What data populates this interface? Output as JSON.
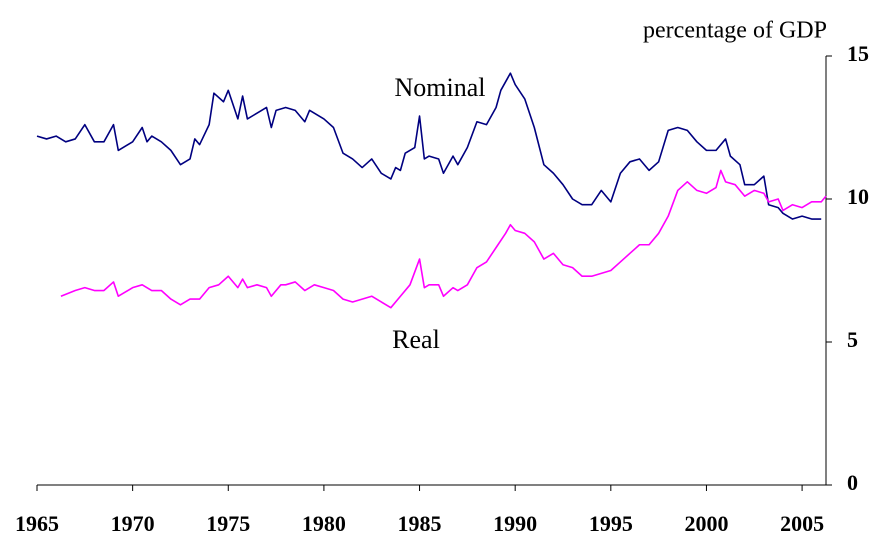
{
  "chart_data": {
    "type": "line",
    "y_label": "percentage of GDP",
    "xlim": [
      1965,
      2006.25
    ],
    "ylim": [
      0,
      15
    ],
    "xticks": [
      1965,
      1970,
      1975,
      1980,
      1985,
      1990,
      1995,
      2000,
      2005
    ],
    "yticks": [
      0,
      5,
      10,
      15
    ],
    "series": [
      {
        "name": "Nominal",
        "color": "#000080",
        "x": [
          1965,
          1965.5,
          1966,
          1966.5,
          1967,
          1967.5,
          1968,
          1968.5,
          1969,
          1969.25,
          1970,
          1970.5,
          1970.75,
          1971,
          1971.5,
          1972,
          1972.5,
          1973,
          1973.25,
          1973.5,
          1974,
          1974.25,
          1974.75,
          1975,
          1975.5,
          1975.75,
          1976,
          1976.5,
          1977,
          1977.25,
          1977.5,
          1978,
          1978.5,
          1979,
          1979.25,
          1979.75,
          1980,
          1980.5,
          1981,
          1981.5,
          1982,
          1982.5,
          1983,
          1983.5,
          1983.75,
          1984,
          1984.25,
          1984.75,
          1985,
          1985.25,
          1985.5,
          1986,
          1986.25,
          1986.75,
          1987,
          1987.5,
          1988,
          1988.5,
          1989,
          1989.25,
          1989.75,
          1990,
          1990.5,
          1991,
          1991.5,
          1992,
          1992.5,
          1993,
          1993.5,
          1994,
          1994.5,
          1995,
          1995.5,
          1996,
          1996.5,
          1997,
          1997.5,
          1998,
          1998.5,
          1999,
          1999.5,
          2000,
          2000.5,
          2001,
          2001.25,
          2001.75,
          2002,
          2002.5,
          2003,
          2003.25,
          2003.75,
          2004,
          2004.5,
          2005,
          2005.5,
          2006
        ],
        "values": [
          12.2,
          12.1,
          12.2,
          12.0,
          12.1,
          12.6,
          12.0,
          12.0,
          12.6,
          11.7,
          12.0,
          12.5,
          12.0,
          12.2,
          12.0,
          11.7,
          11.2,
          11.4,
          12.1,
          11.9,
          12.6,
          13.7,
          13.4,
          13.8,
          12.8,
          13.6,
          12.8,
          13.0,
          13.2,
          12.5,
          13.1,
          13.2,
          13.1,
          12.7,
          13.1,
          12.9,
          12.8,
          12.5,
          11.6,
          11.4,
          11.1,
          11.4,
          10.9,
          10.7,
          11.1,
          11.0,
          11.6,
          11.8,
          12.9,
          11.4,
          11.5,
          11.4,
          10.9,
          11.5,
          11.2,
          11.8,
          12.7,
          12.6,
          13.2,
          13.8,
          14.4,
          14.0,
          13.5,
          12.5,
          11.2,
          10.9,
          10.5,
          10.0,
          9.8,
          9.8,
          10.3,
          9.9,
          10.9,
          11.3,
          11.4,
          11.0,
          11.3,
          12.4,
          12.5,
          12.4,
          12.0,
          11.7,
          11.7,
          12.1,
          11.5,
          11.2,
          10.5,
          10.5,
          10.8,
          9.8,
          9.7,
          9.5,
          9.3,
          9.4,
          9.3,
          9.3
        ]
      },
      {
        "name": "Real",
        "color": "#ff00ff",
        "x": [
          1966.25,
          1967,
          1967.5,
          1968,
          1968.5,
          1969,
          1969.25,
          1970,
          1970.5,
          1971,
          1971.5,
          1972,
          1972.5,
          1973,
          1973.5,
          1974,
          1974.5,
          1975,
          1975.5,
          1975.75,
          1976,
          1976.5,
          1977,
          1977.25,
          1977.75,
          1978,
          1978.5,
          1979,
          1979.5,
          1980,
          1980.5,
          1981,
          1981.5,
          1982,
          1982.5,
          1983,
          1983.5,
          1984,
          1984.5,
          1985,
          1985.25,
          1985.5,
          1986,
          1986.25,
          1986.75,
          1987,
          1987.5,
          1988,
          1988.5,
          1989,
          1989.5,
          1989.75,
          1990,
          1990.5,
          1991,
          1991.5,
          1992,
          1992.5,
          1993,
          1993.5,
          1994,
          1994.5,
          1995,
          1995.5,
          1996,
          1996.5,
          1997,
          1997.5,
          1998,
          1998.5,
          1999,
          1999.5,
          2000,
          2000.5,
          2000.75,
          2001,
          2001.5,
          2002,
          2002.5,
          2003,
          2003.25,
          2003.75,
          2004,
          2004.5,
          2005,
          2005.5,
          2006,
          2006.25
        ],
        "values": [
          6.6,
          6.8,
          6.9,
          6.8,
          6.8,
          7.1,
          6.6,
          6.9,
          7.0,
          6.8,
          6.8,
          6.5,
          6.3,
          6.5,
          6.5,
          6.9,
          7.0,
          7.3,
          6.9,
          7.2,
          6.9,
          7.0,
          6.9,
          6.6,
          7.0,
          7.0,
          7.1,
          6.8,
          7.0,
          6.9,
          6.8,
          6.5,
          6.4,
          6.5,
          6.6,
          6.4,
          6.2,
          6.6,
          7.0,
          7.9,
          6.9,
          7.0,
          7.0,
          6.6,
          6.9,
          6.8,
          7.0,
          7.6,
          7.8,
          8.3,
          8.8,
          9.1,
          8.9,
          8.8,
          8.5,
          7.9,
          8.1,
          7.7,
          7.6,
          7.3,
          7.3,
          7.4,
          7.5,
          7.8,
          8.1,
          8.4,
          8.4,
          8.8,
          9.4,
          10.3,
          10.6,
          10.3,
          10.2,
          10.4,
          11.0,
          10.6,
          10.5,
          10.1,
          10.3,
          10.2,
          9.9,
          10.0,
          9.6,
          9.8,
          9.7,
          9.9,
          9.9,
          10.1
        ]
      }
    ]
  }
}
